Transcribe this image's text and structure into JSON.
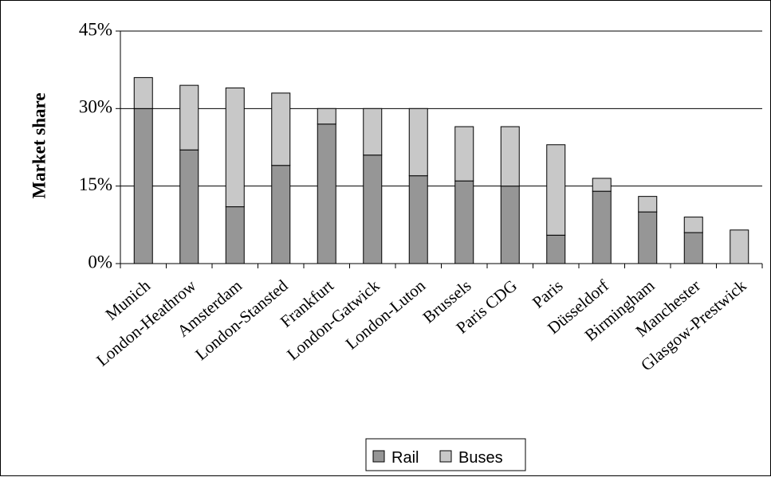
{
  "chart_data": {
    "type": "bar",
    "stacked": true,
    "title": "",
    "xlabel": "",
    "ylabel": "Market share",
    "ylim": [
      0,
      45
    ],
    "yticks": [
      "0%",
      "15%",
      "30%",
      "45%"
    ],
    "grid": true,
    "legend_position": "bottom",
    "categories": [
      "Munich",
      "London-Heathrow",
      "Amsterdam",
      "London-Stansted",
      "Frankfurt",
      "London-Gatwick",
      "London-Luton",
      "Brussels",
      "Paris CDG",
      "Paris",
      "Düsseldorf",
      "Birmingham",
      "Manchester",
      "Glasgow-Prestwick"
    ],
    "series": [
      {
        "name": "Rail",
        "color": "#969696",
        "values": [
          30,
          22,
          11,
          19,
          27,
          21,
          17,
          16,
          15,
          5.5,
          14,
          10,
          6,
          0
        ]
      },
      {
        "name": "Buses",
        "color": "#c8c8c8",
        "values": [
          6,
          12.5,
          23,
          14,
          3,
          9,
          13,
          10.5,
          11.5,
          17.5,
          2.5,
          3,
          3,
          6.5
        ]
      }
    ]
  }
}
